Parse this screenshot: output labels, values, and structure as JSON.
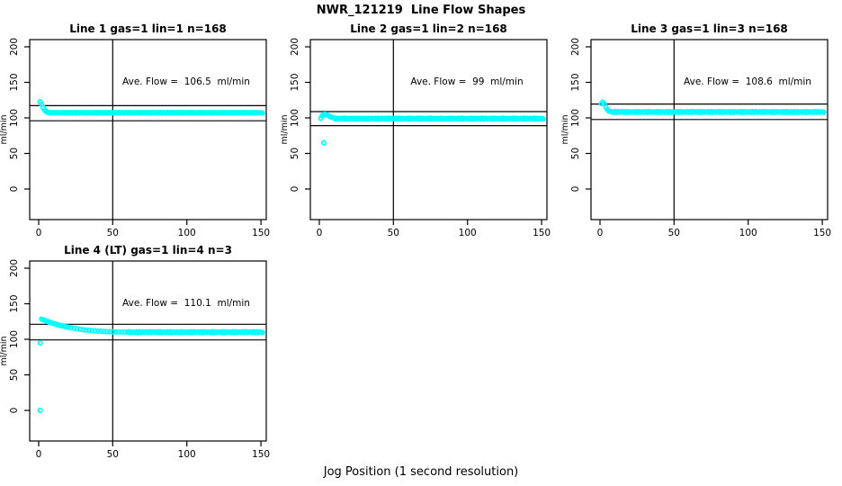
{
  "page": {
    "title": "NWR_121219  Line Flow Shapes",
    "xlabel": "Jog Position (1 second resolution)",
    "background_color": "#FFFFFF",
    "axis_color": "#000000",
    "point_color": "#00FFFF"
  },
  "chart_data": [
    {
      "type": "scatter",
      "title": "Line 1 gas=1 lin=1 n=168",
      "annotation": "Ave. Flow =  106.5  ml/min",
      "ave_flow_ml_min": 106.5,
      "n": 168,
      "ylabel": "ml/min",
      "xticks": [
        0,
        50,
        100,
        150
      ],
      "yticks": [
        0,
        50,
        100,
        150,
        200
      ],
      "xlim": [
        0,
        151
      ],
      "ref_lines_horizontal": [
        117.2,
        95.9
      ],
      "ref_line_vertical": 50,
      "series": {
        "name": "flow",
        "marker": "open-circle",
        "color": "#00FFFF",
        "transient_points": [
          [
            1,
            122.5
          ],
          [
            2,
            119.0
          ],
          [
            3,
            114.5
          ],
          [
            4,
            111.0
          ],
          [
            5,
            109.0
          ],
          [
            6,
            108.0
          ],
          [
            7,
            107.5
          ]
        ],
        "steady": {
          "x_from": 8,
          "x_to": 151,
          "value": 107.2,
          "spread": 0.4
        },
        "outlier_points": []
      }
    },
    {
      "type": "scatter",
      "title": "Line 2 gas=1 lin=2 n=168",
      "annotation": "Ave. Flow =  99  ml/min",
      "ave_flow_ml_min": 99,
      "n": 168,
      "ylabel": "ml/min",
      "xticks": [
        0,
        50,
        100,
        150
      ],
      "yticks": [
        0,
        50,
        100,
        150,
        200
      ],
      "xlim": [
        0,
        151
      ],
      "ref_lines_horizontal": [
        108.9,
        89.1
      ],
      "ref_line_vertical": 50,
      "series": {
        "name": "flow",
        "marker": "open-circle",
        "color": "#00FFFF",
        "transient_points": [
          [
            1,
            99.5
          ],
          [
            2,
            103.2
          ],
          [
            3,
            104.8
          ],
          [
            4,
            104.9
          ],
          [
            5,
            104.2
          ],
          [
            6,
            103.2
          ],
          [
            7,
            102.1
          ],
          [
            8,
            101.1
          ],
          [
            9,
            100.4
          ],
          [
            10,
            99.8
          ]
        ],
        "steady": {
          "x_from": 11,
          "x_to": 151,
          "value": 99.0,
          "spread": 0.6
        },
        "outlier_points": [
          [
            3,
            65
          ]
        ]
      }
    },
    {
      "type": "scatter",
      "title": "Line 3 gas=1 lin=3 n=168",
      "annotation": "Ave. Flow =  108.6  ml/min",
      "ave_flow_ml_min": 108.6,
      "n": 168,
      "ylabel": "ml/min",
      "xticks": [
        0,
        50,
        100,
        150
      ],
      "yticks": [
        0,
        50,
        100,
        150,
        200
      ],
      "xlim": [
        0,
        151
      ],
      "ref_lines_horizontal": [
        119.5,
        97.7
      ],
      "ref_line_vertical": 50,
      "series": {
        "name": "flow",
        "marker": "open-circle",
        "color": "#00FFFF",
        "transient_points": [
          [
            1,
            120.0
          ],
          [
            2,
            122.0
          ],
          [
            3,
            119.5
          ],
          [
            4,
            115.0
          ],
          [
            5,
            111.5
          ],
          [
            6,
            109.8
          ],
          [
            7,
            109.0
          ]
        ],
        "steady": {
          "x_from": 8,
          "x_to": 151,
          "value": 108.3,
          "spread": 0.6
        },
        "outlier_points": []
      }
    },
    {
      "type": "scatter",
      "title": "Line 4 (LT) gas=1 lin=4 n=3",
      "annotation": "Ave. Flow =  110.1  ml/min",
      "ave_flow_ml_min": 110.1,
      "n": 3,
      "ylabel": "ml/min",
      "xticks": [
        0,
        50,
        100,
        150
      ],
      "yticks": [
        0,
        50,
        100,
        150,
        200
      ],
      "xlim": [
        0,
        151
      ],
      "ref_lines_horizontal": [
        121.1,
        99.1
      ],
      "ref_line_vertical": 50,
      "series": {
        "name": "flow",
        "marker": "open-circle",
        "color": "#00FFFF",
        "transient_points": [
          [
            2,
            128.5
          ],
          [
            3,
            127.6
          ],
          [
            4,
            126.7
          ],
          [
            5,
            125.9
          ],
          [
            6,
            125.1
          ],
          [
            7,
            124.3
          ],
          [
            8,
            123.6
          ],
          [
            9,
            122.9
          ],
          [
            10,
            122.2
          ],
          [
            11,
            121.6
          ],
          [
            12,
            121.0
          ],
          [
            13,
            120.4
          ],
          [
            14,
            119.8
          ],
          [
            15,
            119.3
          ],
          [
            16,
            118.8
          ],
          [
            17,
            118.3
          ],
          [
            18,
            117.8
          ],
          [
            19,
            117.4
          ],
          [
            20,
            117.0
          ],
          [
            22,
            116.2
          ],
          [
            24,
            115.4
          ],
          [
            26,
            114.8
          ],
          [
            28,
            114.1
          ],
          [
            30,
            113.6
          ],
          [
            32,
            113.1
          ],
          [
            34,
            112.6
          ],
          [
            36,
            112.2
          ],
          [
            38,
            111.9
          ],
          [
            40,
            111.5
          ],
          [
            42,
            111.3
          ],
          [
            44,
            111.0
          ],
          [
            46,
            110.8
          ],
          [
            48,
            110.6
          ],
          [
            50,
            110.5
          ],
          [
            52,
            110.3
          ],
          [
            54,
            110.2
          ],
          [
            56,
            110.1
          ],
          [
            58,
            110.1
          ],
          [
            60,
            110.0
          ]
        ],
        "steady": {
          "x_from": 61,
          "x_to": 151,
          "value": 110.0,
          "spread": 0.7
        },
        "outlier_points": [
          [
            1,
            0
          ],
          [
            1,
            95
          ]
        ]
      }
    }
  ]
}
